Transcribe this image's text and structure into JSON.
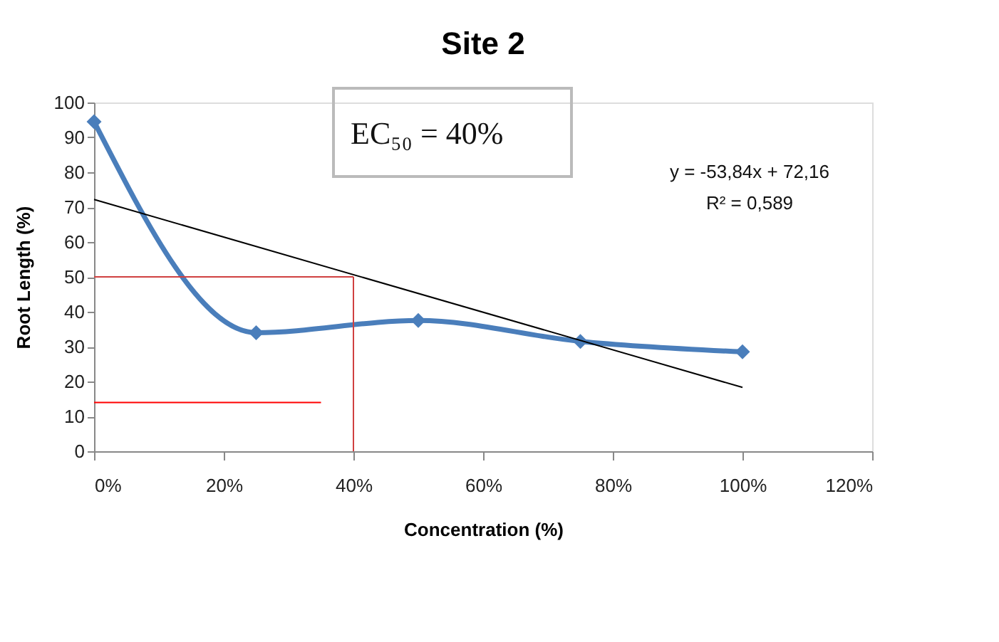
{
  "chart_data": {
    "type": "line",
    "title": "Site 2",
    "xlabel": "Concentration (%)",
    "ylabel": "Root Length (%)",
    "x": [
      0,
      25,
      50,
      75,
      100
    ],
    "series": [
      {
        "color": "#4a7ebb",
        "values": [
          94.5,
          34,
          37.5,
          31.5,
          28.5
        ],
        "marker": "diamond",
        "line_style": "solid"
      },
      {
        "type": "line",
        "color": "#000000",
        "x": [
          0,
          100
        ],
        "values": [
          72.2,
          18.3
        ],
        "marker": "none",
        "line_style": "solid"
      },
      {
        "type": "line",
        "color": "#d04040",
        "x": [
          0,
          40
        ],
        "values": [
          50,
          50
        ],
        "marker": "none",
        "line_style": "solid"
      },
      {
        "type": "line",
        "color": "#d04040",
        "x": [
          40,
          40
        ],
        "values": [
          50,
          0
        ],
        "marker": "none",
        "line_style": "solid"
      },
      {
        "type": "line",
        "color": "#ff0000",
        "x": [
          0,
          35
        ],
        "values": [
          14,
          14
        ],
        "marker": "none",
        "line_style": "solid"
      }
    ],
    "xlim": [
      0,
      120
    ],
    "xticks": [
      {
        "value": 0,
        "label": "0%"
      },
      {
        "value": 20,
        "label": "20%"
      },
      {
        "value": 40,
        "label": "40%"
      },
      {
        "value": 60,
        "label": "60%"
      },
      {
        "value": 80,
        "label": "80%"
      },
      {
        "value": 100,
        "label": "100%"
      },
      {
        "value": 120,
        "label": "120%"
      }
    ],
    "ylim": [
      0,
      100
    ],
    "yticks": [
      0,
      10,
      20,
      30,
      40,
      50,
      60,
      70,
      80,
      90,
      100
    ],
    "grid": false,
    "annotations": [
      "EC₅₀ =  40%",
      "y = -53,84x + 72,16",
      "R² = 0,589"
    ]
  }
}
